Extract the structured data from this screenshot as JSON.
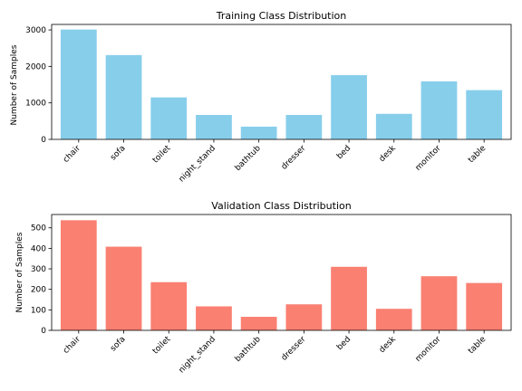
{
  "chart_data": [
    {
      "type": "bar",
      "title": "Training Class Distribution",
      "xlabel": "",
      "ylabel": "Number of Samples",
      "categories": [
        "chair",
        "sofa",
        "toilet",
        "night_stand",
        "bathtub",
        "dresser",
        "bed",
        "desk",
        "monitor",
        "table"
      ],
      "values": [
        3010,
        2310,
        1150,
        670,
        350,
        670,
        1760,
        700,
        1590,
        1350
      ],
      "ylim": [
        0,
        3150
      ],
      "yticks": [
        0,
        1000,
        2000,
        3000
      ],
      "color": "#87CEEB",
      "grid": false
    },
    {
      "type": "bar",
      "title": "Validation Class Distribution",
      "xlabel": "",
      "ylabel": "Number of Samples",
      "categories": [
        "chair",
        "sofa",
        "toilet",
        "night_stand",
        "bathtub",
        "dresser",
        "bed",
        "desk",
        "monitor",
        "table"
      ],
      "values": [
        537,
        408,
        235,
        117,
        66,
        127,
        310,
        105,
        264,
        231
      ],
      "ylim": [
        0,
        565
      ],
      "yticks": [
        0,
        100,
        200,
        300,
        400,
        500
      ],
      "color": "#FA8072",
      "grid": false
    }
  ]
}
